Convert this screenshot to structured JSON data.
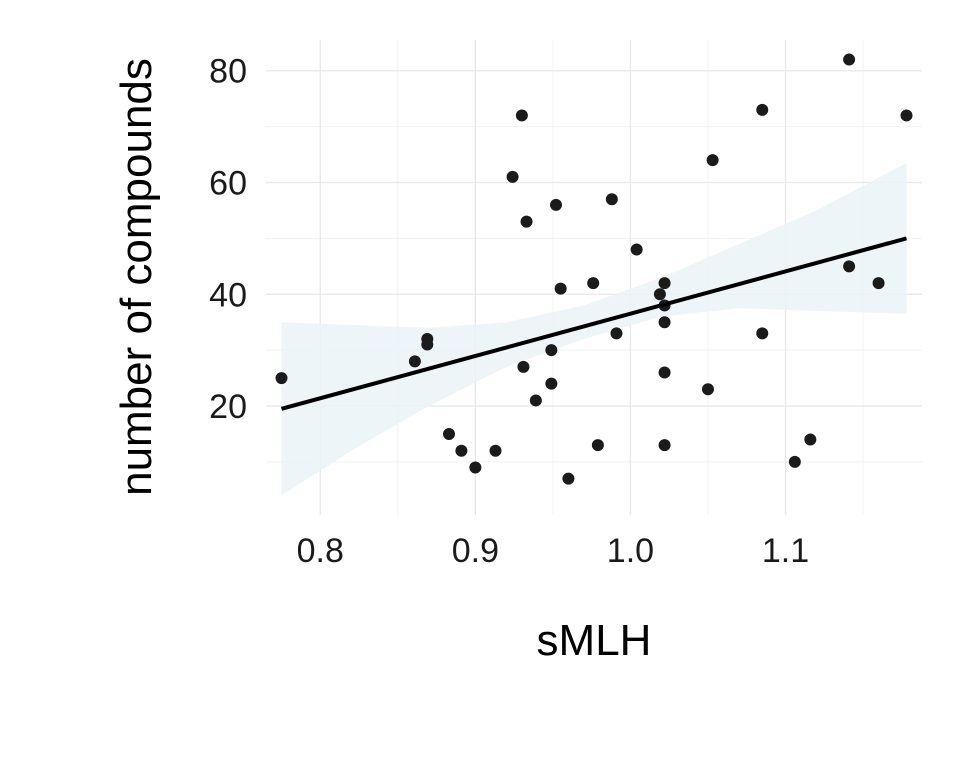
{
  "chart_data": {
    "type": "scatter",
    "title": "",
    "xlabel": "sMLH",
    "ylabel": "number of compounds",
    "xlim": [
      0.765,
      1.188
    ],
    "ylim": [
      0.5,
      85.5
    ],
    "x_ticks": [
      0.8,
      0.9,
      1.0,
      1.1
    ],
    "x_tick_labels": [
      "0.8",
      "0.9",
      "1.0",
      "1.1"
    ],
    "y_ticks": [
      20,
      40,
      60,
      80
    ],
    "y_tick_labels": [
      "20",
      "40",
      "60",
      "80"
    ],
    "grid": true,
    "legend": "none",
    "point_color": "#1b1b1b",
    "line_color": "#000000",
    "ribbon_color": "#eaf3f8",
    "points": [
      {
        "x": 0.775,
        "y": 25
      },
      {
        "x": 0.861,
        "y": 28
      },
      {
        "x": 0.869,
        "y": 32
      },
      {
        "x": 0.869,
        "y": 31
      },
      {
        "x": 0.883,
        "y": 15
      },
      {
        "x": 0.891,
        "y": 12
      },
      {
        "x": 0.9,
        "y": 9
      },
      {
        "x": 0.913,
        "y": 12
      },
      {
        "x": 0.924,
        "y": 61
      },
      {
        "x": 0.93,
        "y": 72
      },
      {
        "x": 0.931,
        "y": 27
      },
      {
        "x": 0.933,
        "y": 53
      },
      {
        "x": 0.939,
        "y": 21
      },
      {
        "x": 0.949,
        "y": 30
      },
      {
        "x": 0.949,
        "y": 24
      },
      {
        "x": 0.952,
        "y": 56
      },
      {
        "x": 0.955,
        "y": 41
      },
      {
        "x": 0.96,
        "y": 7
      },
      {
        "x": 0.976,
        "y": 42
      },
      {
        "x": 0.979,
        "y": 13
      },
      {
        "x": 0.988,
        "y": 57
      },
      {
        "x": 0.991,
        "y": 33
      },
      {
        "x": 1.004,
        "y": 48
      },
      {
        "x": 1.019,
        "y": 40
      },
      {
        "x": 1.022,
        "y": 42
      },
      {
        "x": 1.022,
        "y": 38
      },
      {
        "x": 1.022,
        "y": 35
      },
      {
        "x": 1.022,
        "y": 26
      },
      {
        "x": 1.022,
        "y": 13
      },
      {
        "x": 1.05,
        "y": 23
      },
      {
        "x": 1.053,
        "y": 64
      },
      {
        "x": 1.085,
        "y": 73
      },
      {
        "x": 1.085,
        "y": 33
      },
      {
        "x": 1.106,
        "y": 10
      },
      {
        "x": 1.116,
        "y": 14
      },
      {
        "x": 1.141,
        "y": 82
      },
      {
        "x": 1.141,
        "y": 45
      },
      {
        "x": 1.16,
        "y": 42
      },
      {
        "x": 1.178,
        "y": 72
      }
    ],
    "trend_line": {
      "x": [
        0.775,
        1.178
      ],
      "y": [
        19.5,
        50
      ]
    },
    "confidence_band": {
      "x": [
        0.775,
        0.82,
        0.87,
        0.92,
        0.97,
        1.02,
        1.07,
        1.12,
        1.178
      ],
      "lower": [
        4,
        12,
        20,
        27,
        32,
        36,
        37.5,
        37,
        36.5
      ],
      "upper": [
        35,
        34.5,
        34,
        35,
        38,
        43,
        49,
        55,
        63.5
      ]
    }
  }
}
